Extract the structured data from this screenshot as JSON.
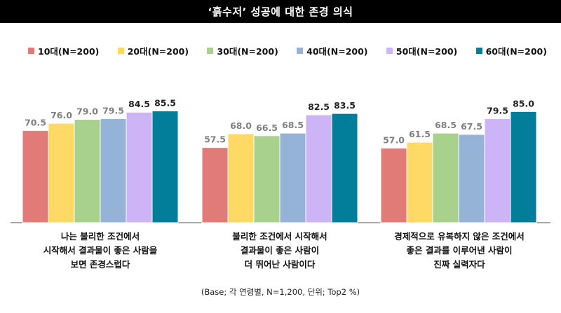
{
  "title": "‘흙수저’ 성공에 대한 존경 의식",
  "footnote": "(Base; 각 연령별, N=1,200, 단위; Top2 %)",
  "chart_data": {
    "type": "bar",
    "categories": [
      "나는 불리한 조건에서\n시작해서 결과물이 좋은 사람을\n보면 존경스럽다",
      "불리한 조건에서 시작해서\n결과물이 좋은 사람이\n더 뛰어난 사람이다",
      "경제적으로 유복하지 않은 조건에서\n좋은 결과를 이루어낸 사람이\n진짜 실력자다"
    ],
    "series": [
      {
        "name": "10대(N=200)",
        "color": "#E07B78",
        "values": [
          70.5,
          57.5,
          57.0
        ]
      },
      {
        "name": "20대(N=200)",
        "color": "#FFD966",
        "values": [
          76.0,
          68.0,
          61.5
        ]
      },
      {
        "name": "30대(N=200)",
        "color": "#A9D18E",
        "values": [
          79.0,
          66.5,
          68.5
        ]
      },
      {
        "name": "40대(N=200)",
        "color": "#95B3D7",
        "values": [
          79.5,
          68.5,
          67.5
        ]
      },
      {
        "name": "50대(N=200)",
        "color": "#CDB4F7",
        "values": [
          84.5,
          82.5,
          79.5
        ]
      },
      {
        "name": "60대(N=200)",
        "color": "#037E9A",
        "values": [
          85.5,
          83.5,
          85.0
        ]
      }
    ],
    "value_format": "one-decimal",
    "ylim": [
      0,
      100
    ],
    "grid": false,
    "legend_position": "top"
  }
}
